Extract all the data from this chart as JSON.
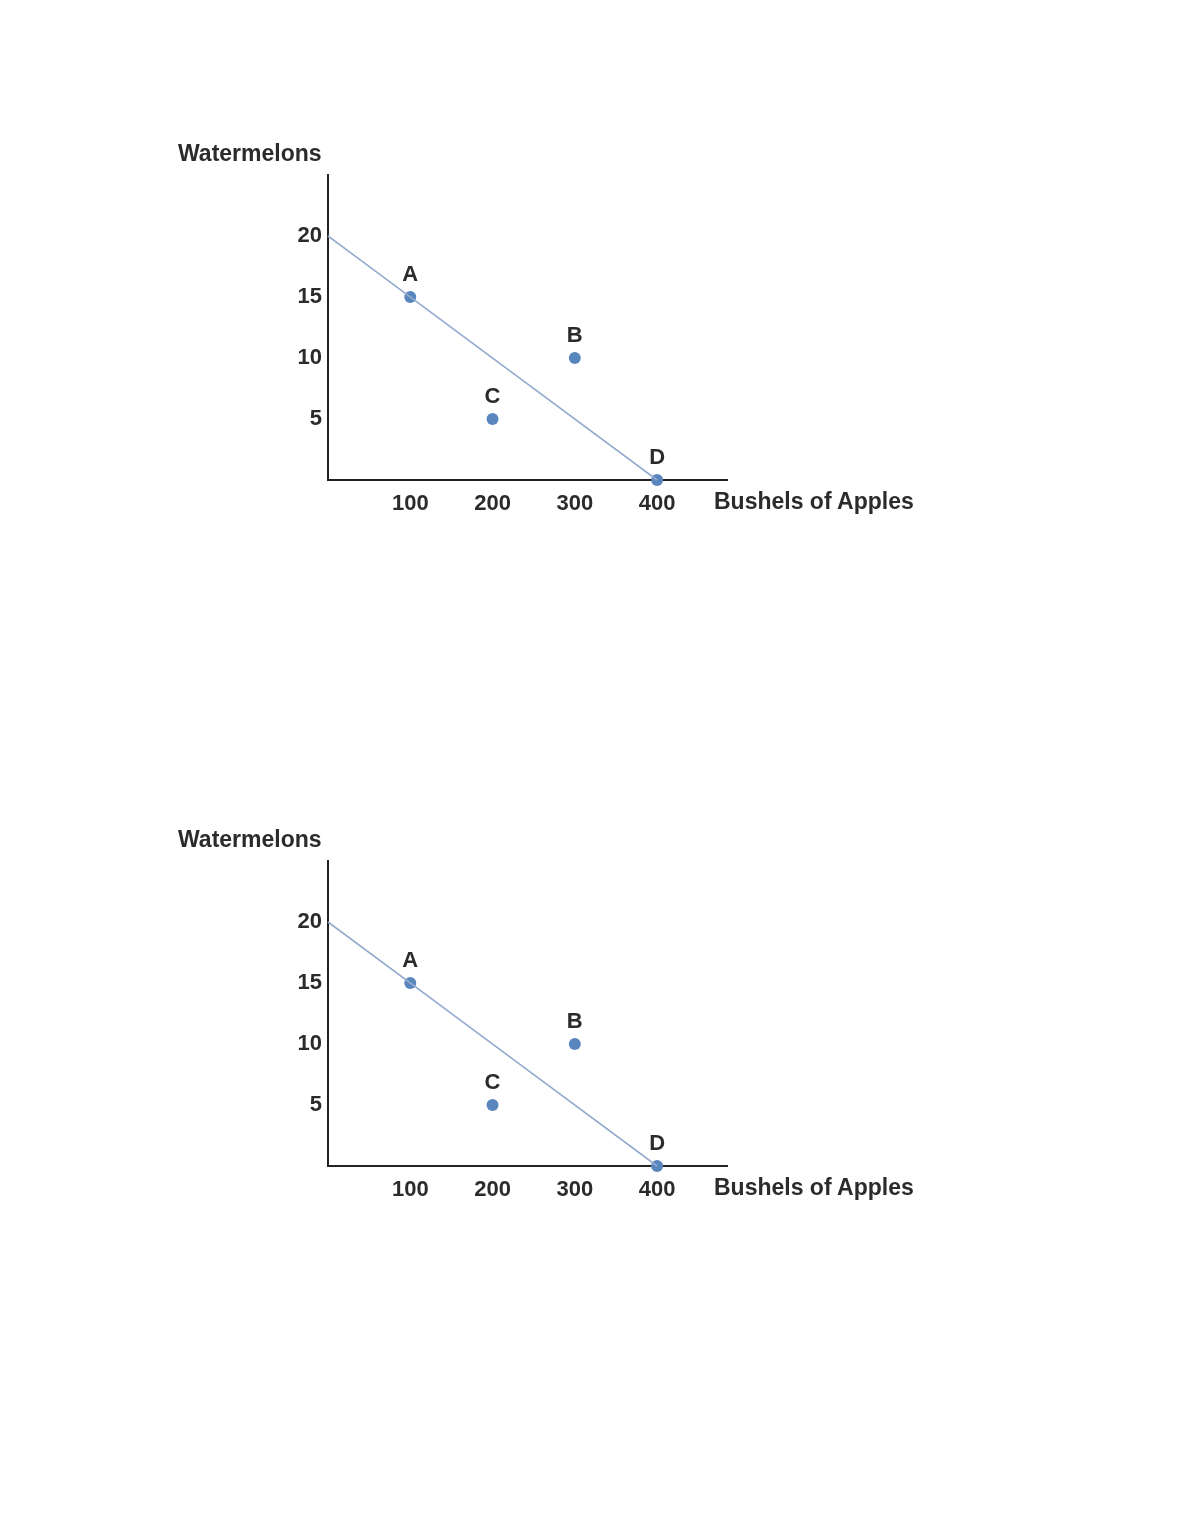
{
  "chart_data": [
    {
      "type": "scatter",
      "xlabel": "Bushels of Apples",
      "ylabel": "Watermelons",
      "series": [
        {
          "type": "line",
          "color": "#94abcf",
          "x": [
            0,
            400
          ],
          "values": [
            20,
            0
          ],
          "marker": "none",
          "line_style": "solid"
        },
        {
          "color": "#5a86be",
          "x": [
            100,
            300,
            200,
            400
          ],
          "values": [
            15,
            10,
            5,
            0
          ],
          "marker": "circle"
        }
      ],
      "annotations": [
        {
          "text": "A",
          "x": 100,
          "y": 15
        },
        {
          "text": "B",
          "x": 300,
          "y": 10
        },
        {
          "text": "C",
          "x": 200,
          "y": 5
        },
        {
          "text": "D",
          "x": 400,
          "y": 0
        }
      ],
      "xlim": [
        0,
        485
      ],
      "ylim": [
        0,
        25
      ],
      "xticks": [
        100,
        200,
        300,
        400
      ],
      "yticks": [
        5,
        10,
        15,
        20
      ],
      "grid": false,
      "legend": false
    },
    {
      "type": "scatter",
      "xlabel": "Bushels of Apples",
      "ylabel": "Watermelons",
      "series": [
        {
          "type": "line",
          "color": "#94abcf",
          "x": [
            0,
            400
          ],
          "values": [
            20,
            0
          ],
          "marker": "none",
          "line_style": "solid"
        },
        {
          "color": "#5a86be",
          "x": [
            100,
            300,
            200,
            400
          ],
          "values": [
            15,
            10,
            5,
            0
          ],
          "marker": "circle"
        }
      ],
      "annotations": [
        {
          "text": "A",
          "x": 100,
          "y": 15
        },
        {
          "text": "B",
          "x": 300,
          "y": 10
        },
        {
          "text": "C",
          "x": 200,
          "y": 5
        },
        {
          "text": "D",
          "x": 400,
          "y": 0
        }
      ],
      "xlim": [
        0,
        485
      ],
      "ylim": [
        0,
        25
      ],
      "xticks": [
        100,
        200,
        300,
        400
      ],
      "yticks": [
        5,
        10,
        15,
        20
      ],
      "grid": false,
      "legend": false
    }
  ]
}
